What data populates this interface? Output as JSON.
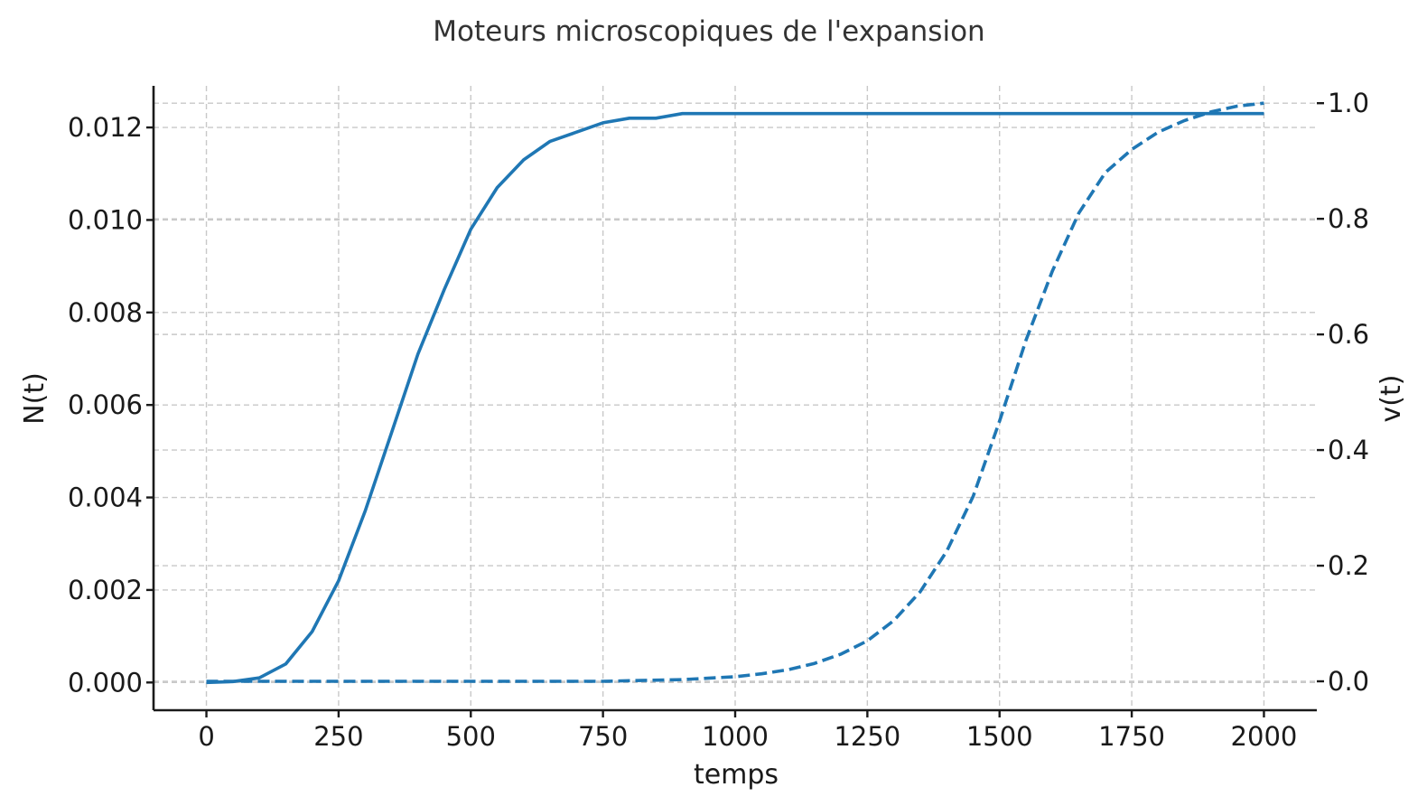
{
  "chart_data": {
    "type": "line",
    "title": "Moteurs microscopiques de l'expansion",
    "xlabel": "temps",
    "ylabel_left": "N(t)",
    "ylabel_right": "v(t)",
    "xlim": [
      -100,
      2100
    ],
    "ylim_left": [
      -0.0006,
      0.0129
    ],
    "ylim_right": [
      -0.05,
      1.03
    ],
    "x_ticks": [
      0,
      250,
      500,
      750,
      1000,
      1250,
      1500,
      1750,
      2000
    ],
    "x_tick_labels": [
      "0",
      "250",
      "500",
      "750",
      "1000",
      "1250",
      "1500",
      "1750",
      "2000"
    ],
    "y_left_ticks": [
      0.0,
      0.002,
      0.004,
      0.006,
      0.008,
      0.01,
      0.012
    ],
    "y_left_tick_labels": [
      "0.000",
      "0.002",
      "0.004",
      "0.006",
      "0.008",
      "0.010",
      "0.012"
    ],
    "y_right_ticks": [
      0.0,
      0.2,
      0.4,
      0.6,
      0.8,
      1.0
    ],
    "y_right_tick_labels": [
      "0.0",
      "0.2",
      "0.4",
      "0.6",
      "0.8",
      "1.0"
    ],
    "grid": true,
    "color": "#1f77b4",
    "series": [
      {
        "axis": "left",
        "style": "solid",
        "x": [
          0,
          50,
          100,
          150,
          200,
          250,
          300,
          350,
          400,
          450,
          500,
          550,
          600,
          650,
          700,
          750,
          800,
          850,
          900,
          1000,
          1100,
          1250,
          1500,
          1750,
          2000
        ],
        "y": [
          0.0,
          2e-05,
          0.0001,
          0.0004,
          0.0011,
          0.0022,
          0.0037,
          0.0054,
          0.0071,
          0.0085,
          0.0098,
          0.0107,
          0.0113,
          0.0117,
          0.0119,
          0.0121,
          0.0122,
          0.0122,
          0.0123,
          0.0123,
          0.0123,
          0.0123,
          0.0123,
          0.0123,
          0.0123
        ]
      },
      {
        "axis": "right",
        "style": "dashed",
        "x": [
          0,
          250,
          500,
          750,
          900,
          1000,
          1050,
          1100,
          1150,
          1200,
          1250,
          1300,
          1350,
          1400,
          1450,
          1500,
          1550,
          1600,
          1650,
          1700,
          1750,
          1800,
          1850,
          1900,
          1950,
          2000
        ],
        "y": [
          0.0,
          0.0,
          0.0,
          0.0,
          0.003,
          0.008,
          0.013,
          0.02,
          0.031,
          0.047,
          0.07,
          0.105,
          0.155,
          0.225,
          0.32,
          0.45,
          0.59,
          0.71,
          0.81,
          0.88,
          0.92,
          0.95,
          0.97,
          0.985,
          0.995,
          1.0
        ]
      }
    ]
  }
}
